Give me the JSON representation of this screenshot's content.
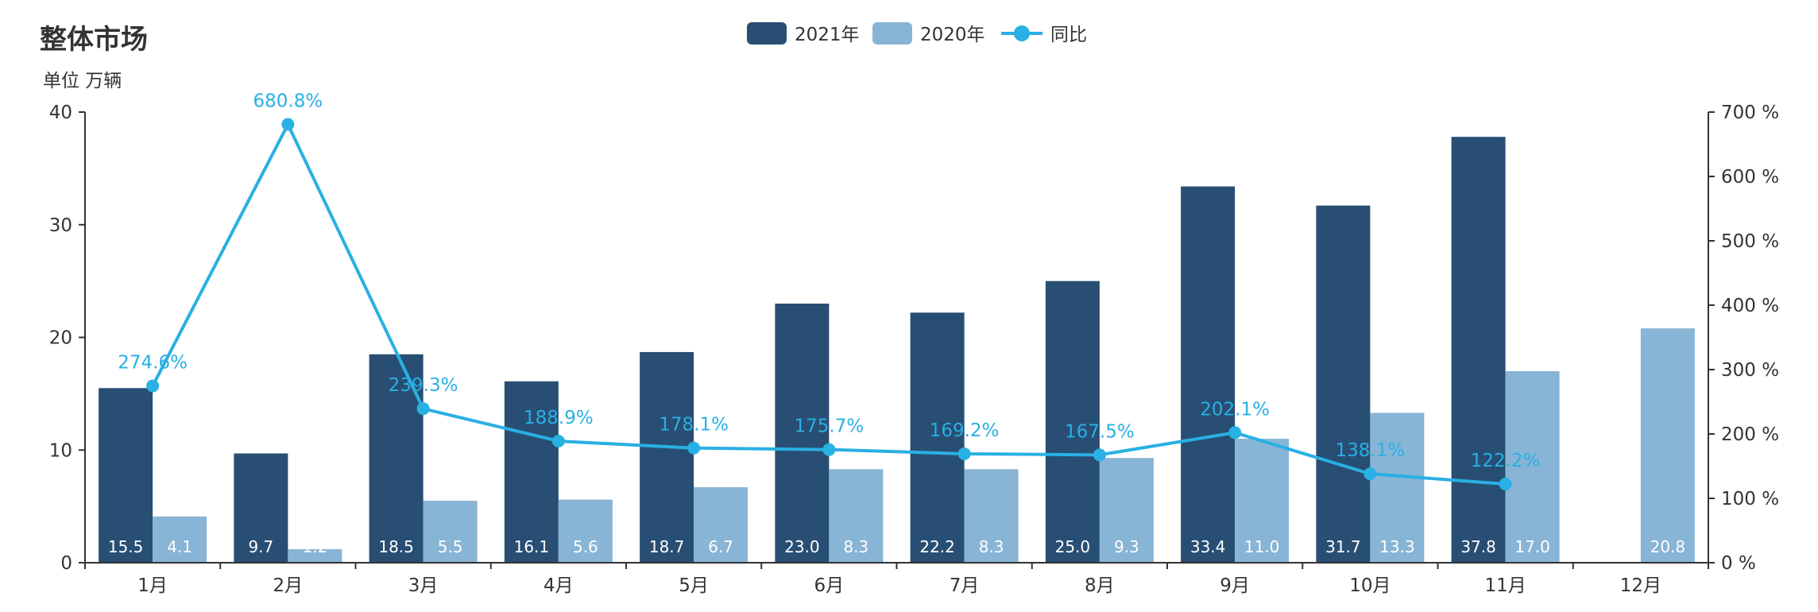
{
  "header": {
    "title": "整体市场",
    "unit": "单位 万辆"
  },
  "colors": {
    "series_2021": "#284e74",
    "series_2020": "#88b4d5",
    "yoy_line": "#29b0e4",
    "axis": "#333333"
  },
  "chart_data": {
    "type": "bar",
    "title": "整体市场",
    "ylabel": "单位 万辆",
    "categories": [
      "1月",
      "2月",
      "3月",
      "4月",
      "5月",
      "6月",
      "7月",
      "8月",
      "9月",
      "10月",
      "11月",
      "12月"
    ],
    "series": [
      {
        "name": "2021年",
        "type": "bar",
        "values": [
          15.5,
          9.7,
          18.5,
          16.1,
          18.7,
          23.0,
          22.2,
          25.0,
          33.4,
          31.7,
          37.8,
          null
        ],
        "labels": [
          "15.5",
          "9.7",
          "18.5",
          "16.1",
          "18.7",
          "23.0",
          "22.2",
          "25.0",
          "33.4",
          "31.7",
          "37.8",
          ""
        ]
      },
      {
        "name": "2020年",
        "type": "bar",
        "values": [
          4.1,
          1.2,
          5.5,
          5.6,
          6.7,
          8.3,
          8.3,
          9.3,
          11.0,
          13.3,
          17.0,
          20.8
        ],
        "labels": [
          "4.1",
          "1.2",
          "5.5",
          "5.6",
          "6.7",
          "8.3",
          "8.3",
          "9.3",
          "11.0",
          "13.3",
          "17.0",
          "20.8"
        ]
      },
      {
        "name": "同比",
        "type": "line",
        "axis": "right",
        "values": [
          274.6,
          680.8,
          239.3,
          188.9,
          178.1,
          175.7,
          169.2,
          167.5,
          202.1,
          138.1,
          122.2,
          null
        ],
        "labels": [
          "274.6%",
          "680.8%",
          "239.3%",
          "188.9%",
          "178.1%",
          "175.7%",
          "169.2%",
          "167.5%",
          "202.1%",
          "138.1%",
          "122.2%",
          ""
        ]
      }
    ],
    "ylim_left": [
      0,
      40
    ],
    "yticks_left": [
      "0",
      "10",
      "20",
      "30",
      "40"
    ],
    "ylim_right": [
      0,
      700
    ],
    "yticks_right": [
      "0 %",
      "100 %",
      "200 %",
      "300 %",
      "400 %",
      "500 %",
      "600 %",
      "700 %"
    ],
    "grid": false,
    "legend_position": "top-center"
  }
}
